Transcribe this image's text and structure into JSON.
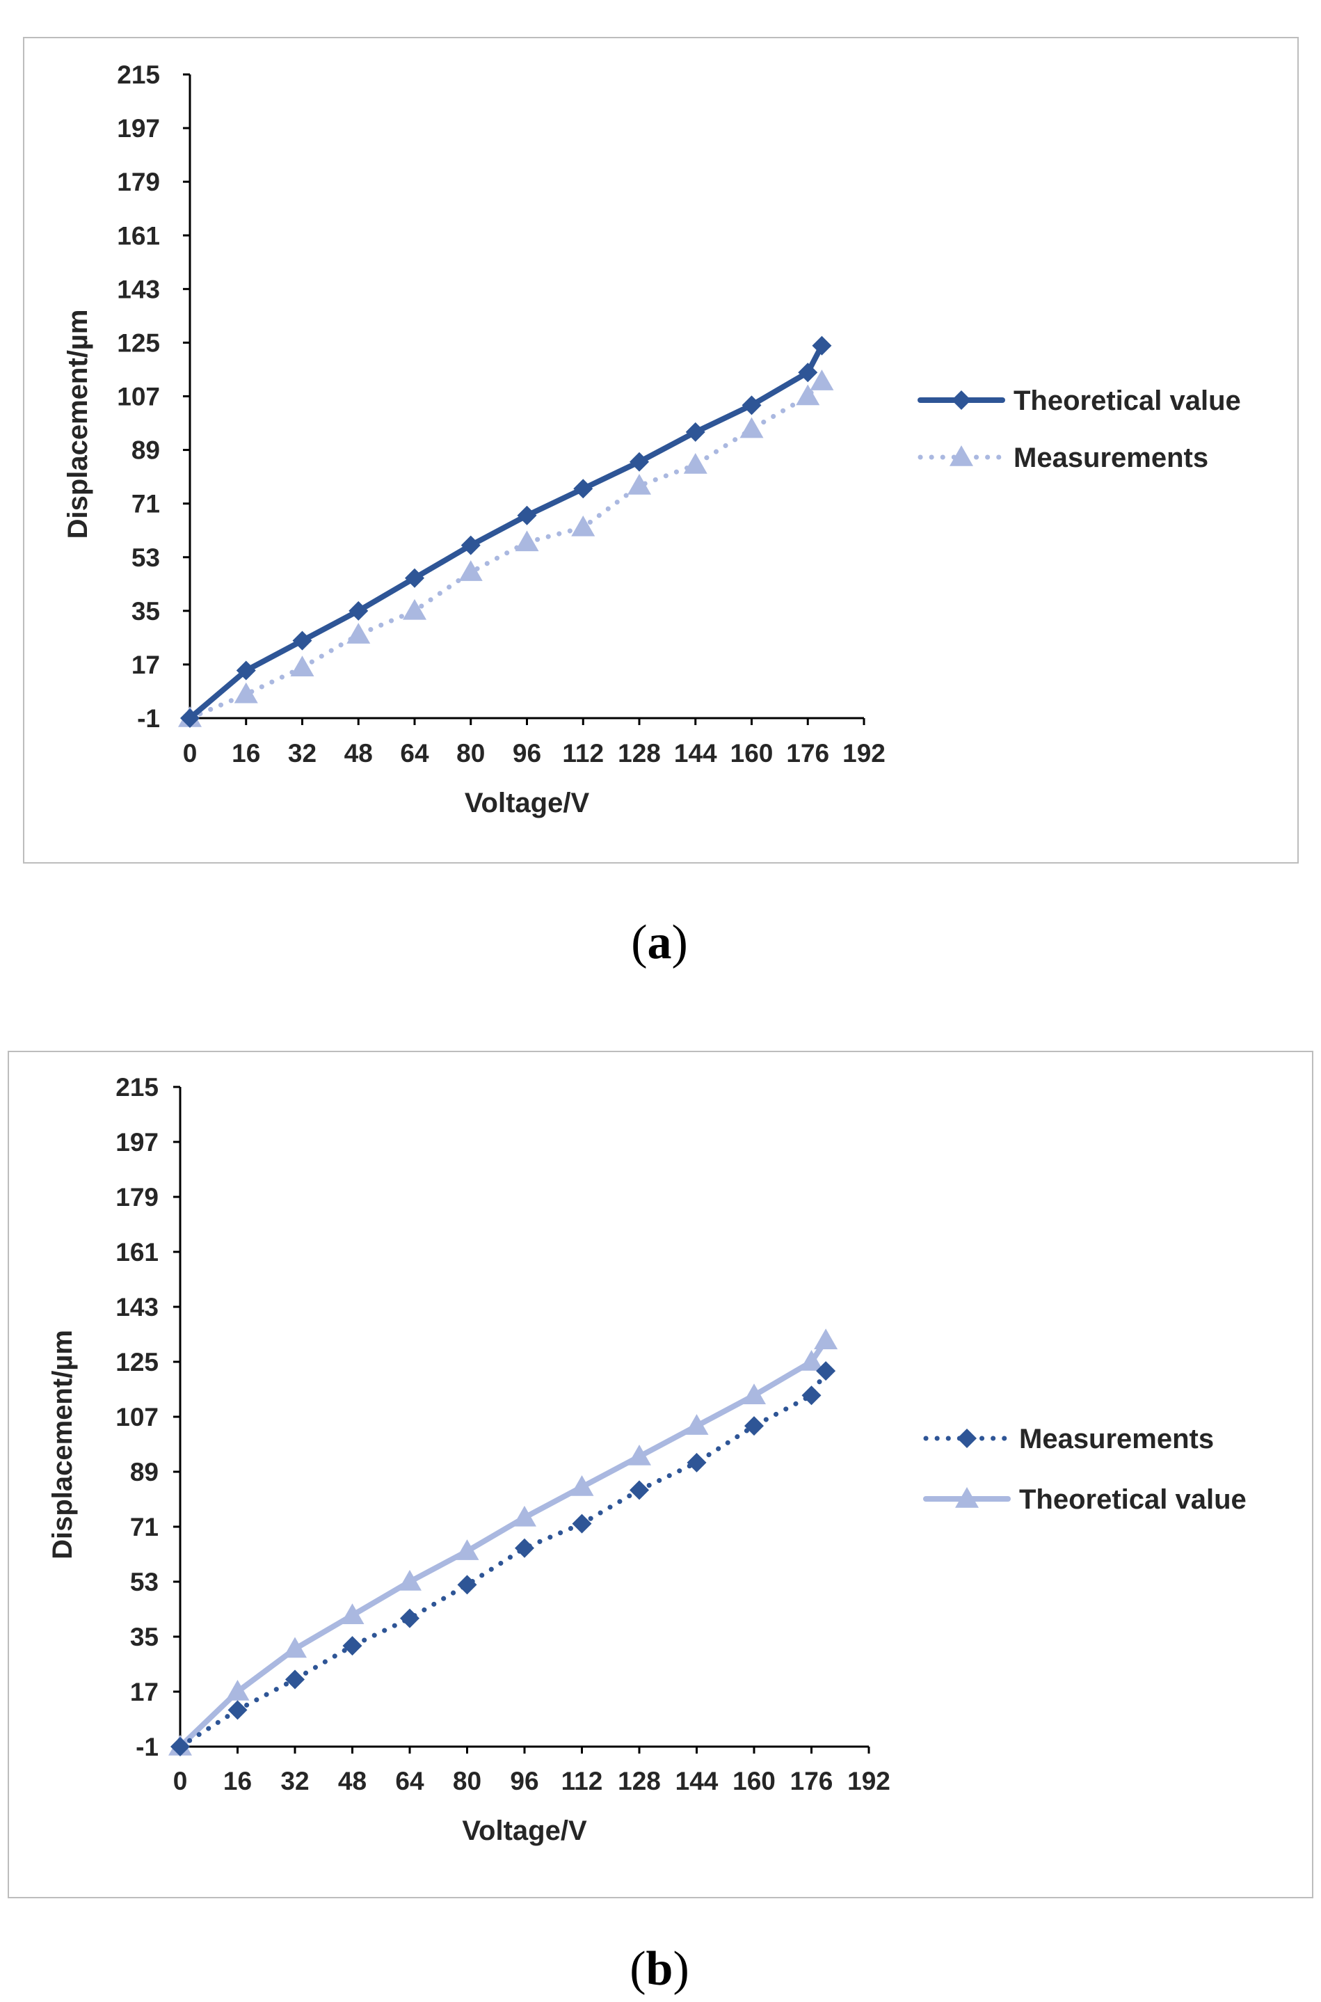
{
  "chart_data": [
    {
      "type": "line",
      "panel": "a",
      "xlabel": "Voltage/V",
      "ylabel": "Displacement/µm",
      "xlim": [
        0,
        192
      ],
      "ylim": [
        -1,
        215
      ],
      "x_ticks": [
        "0",
        "16",
        "32",
        "48",
        "64",
        "80",
        "96",
        "112",
        "128",
        "144",
        "160",
        "176",
        "192"
      ],
      "y_ticks": [
        "-1",
        "17",
        "35",
        "53",
        "71",
        "89",
        "107",
        "125",
        "143",
        "161",
        "179",
        "197",
        "215"
      ],
      "legend_position": "right",
      "series": [
        {
          "name": "Theoretical value",
          "style": "solid",
          "marker": "diamond",
          "color": "#2e5596",
          "x": [
            0,
            16,
            32,
            48,
            64,
            80,
            96,
            112,
            128,
            144,
            160,
            176,
            180
          ],
          "y": [
            -1,
            15,
            25,
            35,
            46,
            57,
            67,
            76,
            85,
            95,
            104,
            115,
            124
          ]
        },
        {
          "name": "Measurements",
          "style": "dotted",
          "marker": "triangle",
          "color": "#aab8e0",
          "x": [
            0,
            16,
            32,
            48,
            64,
            80,
            96,
            112,
            128,
            144,
            160,
            176,
            180
          ],
          "y": [
            -1,
            7,
            16,
            27,
            35,
            48,
            58,
            63,
            77,
            84,
            96,
            107,
            112
          ]
        }
      ]
    },
    {
      "type": "line",
      "panel": "b",
      "xlabel": "Voltage/V",
      "ylabel": "Displacement/µm",
      "xlim": [
        0,
        192
      ],
      "ylim": [
        -1,
        215
      ],
      "x_ticks": [
        "0",
        "16",
        "32",
        "48",
        "64",
        "80",
        "96",
        "112",
        "128",
        "144",
        "160",
        "176",
        "192"
      ],
      "y_ticks": [
        "-1",
        "17",
        "35",
        "53",
        "71",
        "89",
        "107",
        "125",
        "143",
        "161",
        "179",
        "197",
        "215"
      ],
      "legend_position": "right",
      "series": [
        {
          "name": "Measurements",
          "style": "dotted",
          "marker": "diamond",
          "color": "#2e5596",
          "x": [
            0,
            16,
            32,
            48,
            64,
            80,
            96,
            112,
            128,
            144,
            160,
            176,
            180
          ],
          "y": [
            -1,
            11,
            21,
            32,
            41,
            52,
            64,
            72,
            83,
            92,
            104,
            114,
            122
          ]
        },
        {
          "name": "Theoretical value",
          "style": "solid",
          "marker": "triangle",
          "color": "#aab8e0",
          "x": [
            0,
            16,
            32,
            48,
            64,
            80,
            96,
            112,
            128,
            144,
            160,
            176,
            180
          ],
          "y": [
            -1,
            17,
            31,
            42,
            53,
            63,
            74,
            84,
            94,
            104,
            114,
            125,
            132
          ]
        }
      ]
    }
  ],
  "captions": {
    "a": "a",
    "b": "b"
  },
  "caption_parens": {
    "open": "(",
    "close": ")"
  }
}
